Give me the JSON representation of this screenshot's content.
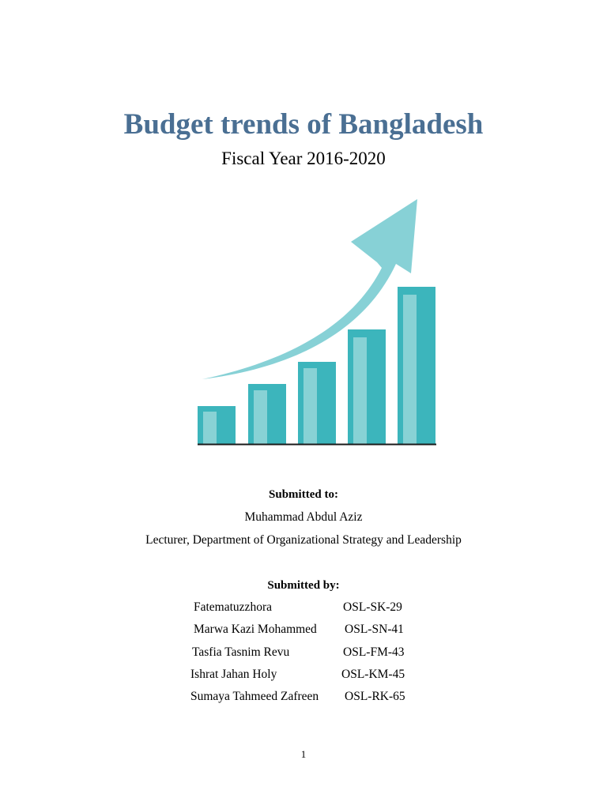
{
  "document": {
    "title": "Budget trends of Bangladesh",
    "subtitle": "Fiscal Year 2016-2020",
    "illustration": {
      "icon": "growth-bar-chart-with-arrow-icon",
      "bar_color": "#3cb5bc",
      "bar_highlight_color": "#88d2d5",
      "arrow_color": "#87d1d6",
      "baseline_color": "#1a1a1a"
    },
    "submitted_to": {
      "heading": "Submitted to:",
      "name": "Muhammad Abdul Aziz",
      "position": "Lecturer, Department of Organizational Strategy and Leadership"
    },
    "submitted_by": {
      "heading": "Submitted by:",
      "members": [
        {
          "name": "Fatematuzzhora",
          "id": "OSL-SK-29"
        },
        {
          "name": "Marwa Kazi Mohammed",
          "id": "OSL-SN-41"
        },
        {
          "name": "Tasfia Tasnim Revu",
          "id": "OSL-FM-43"
        },
        {
          "name": "Ishrat Jahan Holy",
          "id": "OSL-KM-45"
        },
        {
          "name": "Sumaya Tahmeed Zafreen",
          "id": "OSL-RK-65"
        }
      ]
    },
    "page_number": "1"
  }
}
